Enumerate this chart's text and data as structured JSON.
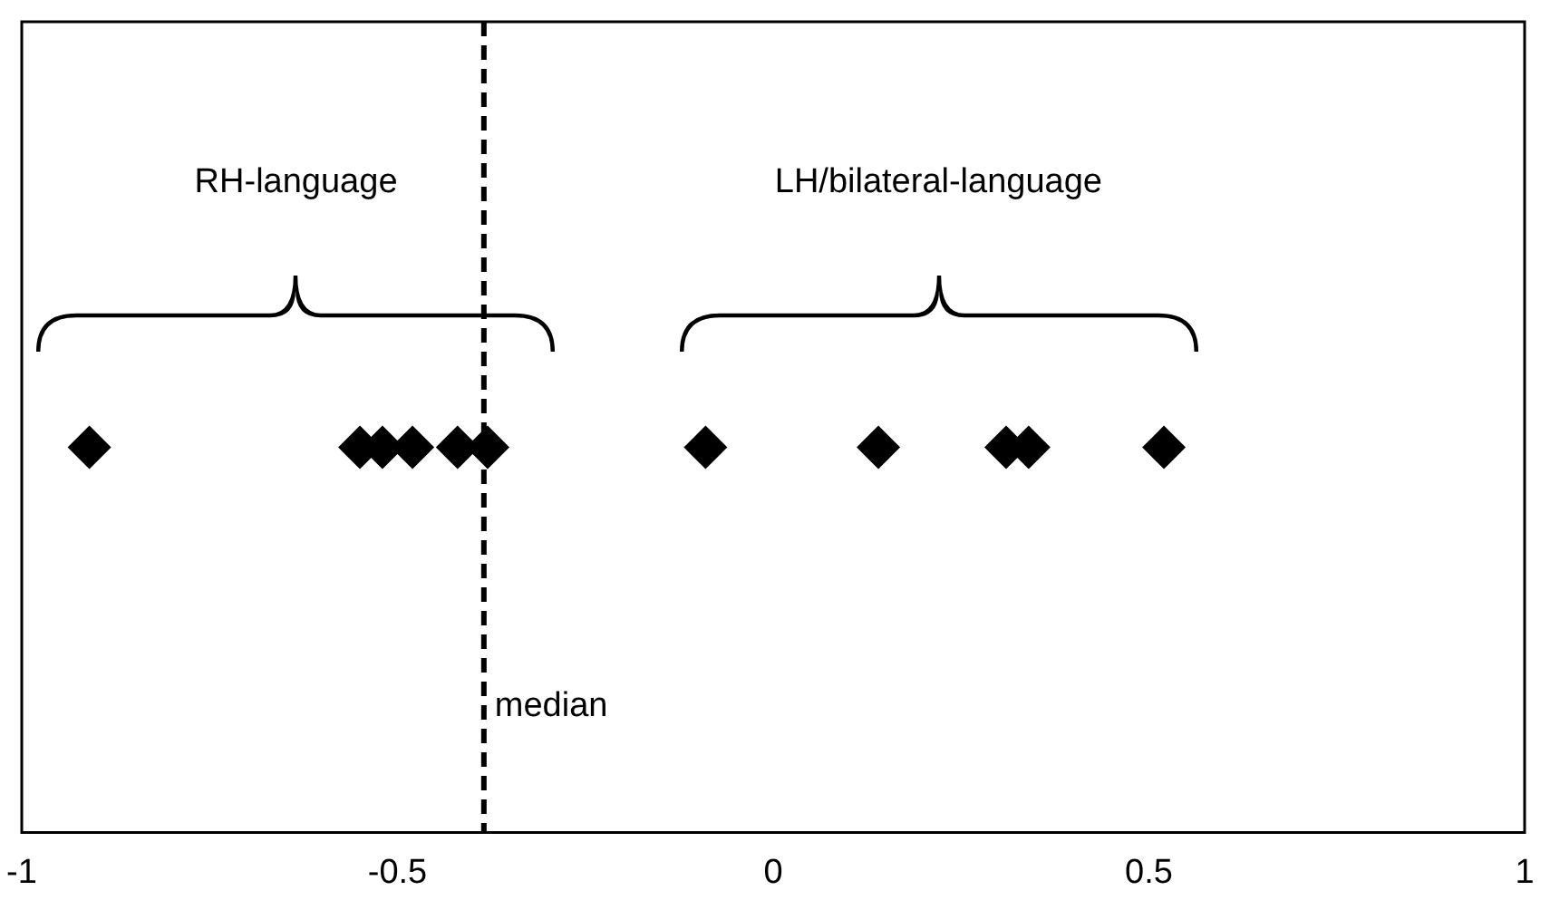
{
  "chart_data": {
    "type": "scatter",
    "orientation": "horizontal",
    "categories": [
      null
    ],
    "series": [
      {
        "color": "#000000",
        "values": [
          -0.91
        ]
      },
      {
        "color": "#000000",
        "values": [
          -0.55
        ]
      },
      {
        "color": "#000000",
        "values": [
          -0.52
        ]
      },
      {
        "color": "#000000",
        "values": [
          -0.48
        ]
      },
      {
        "color": "#000000",
        "values": [
          -0.42
        ]
      },
      {
        "color": "#000000",
        "values": [
          -0.38
        ]
      },
      {
        "color": "#000000",
        "values": [
          -0.09
        ]
      },
      {
        "color": "#000000",
        "values": [
          0.14
        ]
      },
      {
        "color": "#000000",
        "values": [
          0.31
        ]
      },
      {
        "color": "#000000",
        "values": [
          0.34
        ]
      },
      {
        "color": "#000000",
        "values": [
          0.52
        ]
      }
    ],
    "xlim": [
      -1,
      1
    ],
    "xticks": [
      -1,
      -0.5,
      0,
      0.5,
      1
    ],
    "marker": "diamond",
    "grid": false,
    "legend": false,
    "tick_labels": "x",
    "ref_lines": [
      {
        "axis": "x",
        "value": -0.385,
        "label": "median",
        "line_style": "dashed",
        "color": "#000000"
      }
    ],
    "annotations": [
      "RH-language",
      "LH/bilateral-language"
    ]
  }
}
